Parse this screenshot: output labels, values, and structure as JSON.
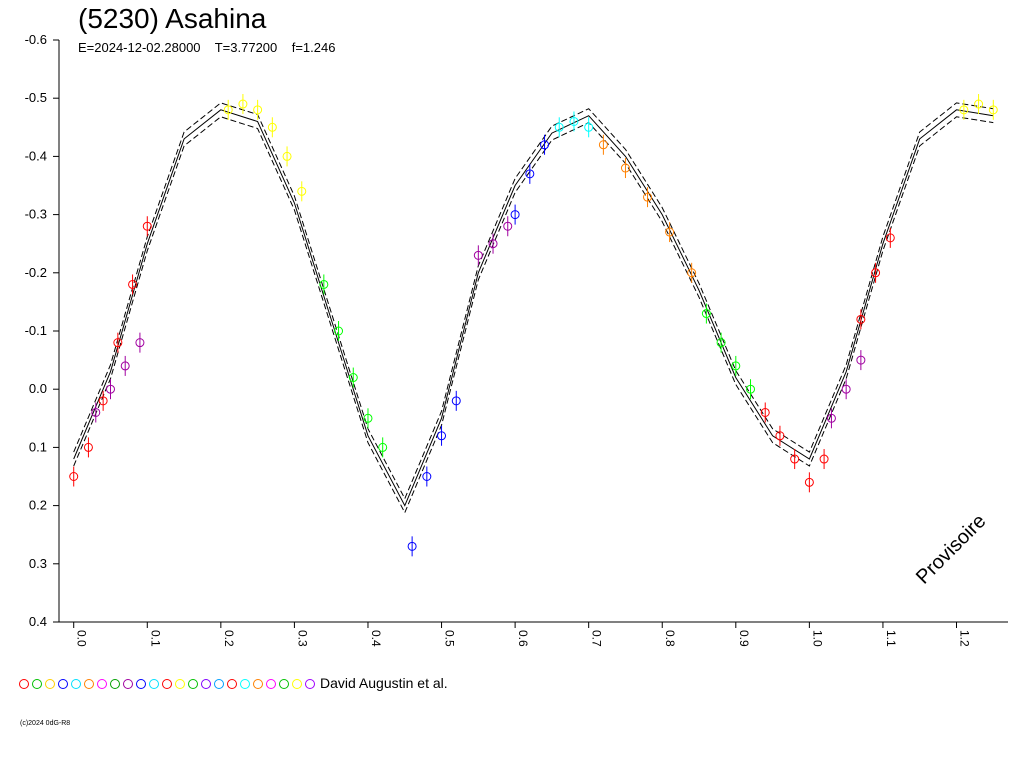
{
  "header": {
    "title": "(5230) Asahina",
    "subtitle": "E=2024-12-02.28000    T=3.77200    f=1.246"
  },
  "legend": {
    "text": "David Augustin et al.",
    "symbol_colors": [
      "#ff0000",
      "#00c000",
      "#ffd000",
      "#0000ff",
      "#00e0ff",
      "#ff8000",
      "#ff00ff",
      "#00a000",
      "#a000a0",
      "#0000ff",
      "#00e0ff",
      "#ff0000",
      "#ffff00",
      "#00c000",
      "#8000ff",
      "#00a0ff",
      "#ff0000",
      "#00ffff",
      "#ff8000",
      "#ff00ff",
      "#00c000",
      "#ffff00",
      "#a000ff"
    ]
  },
  "copyright": "(c)2024 0dG-R8",
  "watermark": "Provisoire",
  "chart_data": {
    "type": "scatter",
    "xlabel": "",
    "ylabel": "",
    "xlim": [
      -0.02,
      1.27
    ],
    "ylim": [
      0.4,
      -0.6
    ],
    "y_inverted": true,
    "grid": false,
    "x_ticks": [
      "0.0",
      "0.1",
      "0.2",
      "0.3",
      "0.4",
      "0.5",
      "0.6",
      "0.7",
      "0.8",
      "0.9",
      "1.0",
      "1.1",
      "1.2"
    ],
    "y_ticks": [
      "-0.6",
      "-0.5",
      "-0.4",
      "-0.3",
      "-0.2",
      "-0.1",
      "0.0",
      "0.1",
      "0.2",
      "0.3",
      "0.4"
    ],
    "fit_curve": {
      "phase": [
        0.0,
        0.05,
        0.1,
        0.15,
        0.2,
        0.25,
        0.3,
        0.35,
        0.4,
        0.45,
        0.5,
        0.55,
        0.6,
        0.65,
        0.7,
        0.75,
        0.8,
        0.85,
        0.9,
        0.95,
        1.0,
        1.05,
        1.1,
        1.15,
        1.2,
        1.25
      ],
      "mag": [
        0.12,
        -0.03,
        -0.25,
        -0.43,
        -0.48,
        -0.46,
        -0.32,
        -0.12,
        0.08,
        0.2,
        0.05,
        -0.2,
        -0.35,
        -0.44,
        -0.47,
        -0.4,
        -0.3,
        -0.17,
        -0.02,
        0.08,
        0.12,
        -0.03,
        -0.25,
        -0.43,
        -0.48,
        -0.47
      ]
    },
    "series": [
      {
        "color": "#ff0000",
        "phase": [
          0.0,
          0.02,
          0.04,
          0.06,
          0.08,
          0.1
        ],
        "mag": [
          0.15,
          0.1,
          0.02,
          -0.08,
          -0.18,
          -0.28
        ]
      },
      {
        "color": "#a000a0",
        "phase": [
          0.03,
          0.05,
          0.07,
          0.09
        ],
        "mag": [
          0.04,
          0.0,
          -0.04,
          -0.08
        ]
      },
      {
        "color": "#ffff00",
        "phase": [
          0.21,
          0.23,
          0.25,
          0.27,
          0.29,
          0.31
        ],
        "mag": [
          -0.48,
          -0.49,
          -0.48,
          -0.45,
          -0.4,
          -0.34
        ]
      },
      {
        "color": "#00ff00",
        "phase": [
          0.34,
          0.36,
          0.38,
          0.4,
          0.42
        ],
        "mag": [
          -0.18,
          -0.1,
          -0.02,
          0.05,
          0.1
        ]
      },
      {
        "color": "#0000ff",
        "phase": [
          0.46,
          0.48,
          0.5,
          0.52,
          0.6,
          0.62,
          0.64
        ],
        "mag": [
          0.27,
          0.15,
          0.08,
          0.02,
          -0.3,
          -0.37,
          -0.42
        ]
      },
      {
        "color": "#a000a0",
        "phase": [
          0.55,
          0.57,
          0.59
        ],
        "mag": [
          -0.23,
          -0.25,
          -0.28
        ]
      },
      {
        "color": "#00ffff",
        "phase": [
          0.66,
          0.68,
          0.7
        ],
        "mag": [
          -0.45,
          -0.46,
          -0.45
        ]
      },
      {
        "color": "#ff8000",
        "phase": [
          0.72,
          0.75,
          0.78,
          0.81,
          0.84
        ],
        "mag": [
          -0.42,
          -0.38,
          -0.33,
          -0.27,
          -0.2
        ]
      },
      {
        "color": "#00ff00",
        "phase": [
          0.86,
          0.88,
          0.9,
          0.92
        ],
        "mag": [
          -0.13,
          -0.08,
          -0.04,
          0.0
        ]
      },
      {
        "color": "#ff0000",
        "phase": [
          0.94,
          0.96,
          0.98,
          1.0,
          1.02
        ],
        "mag": [
          0.04,
          0.08,
          0.12,
          0.16,
          0.12
        ]
      },
      {
        "color": "#a000a0",
        "phase": [
          1.03,
          1.05,
          1.07
        ],
        "mag": [
          0.05,
          0.0,
          -0.05
        ]
      },
      {
        "color": "#ff0000",
        "phase": [
          1.07,
          1.09,
          1.11
        ],
        "mag": [
          -0.12,
          -0.2,
          -0.26
        ]
      },
      {
        "color": "#ffff00",
        "phase": [
          1.21,
          1.23,
          1.25
        ],
        "mag": [
          -0.48,
          -0.49,
          -0.48
        ]
      }
    ]
  }
}
